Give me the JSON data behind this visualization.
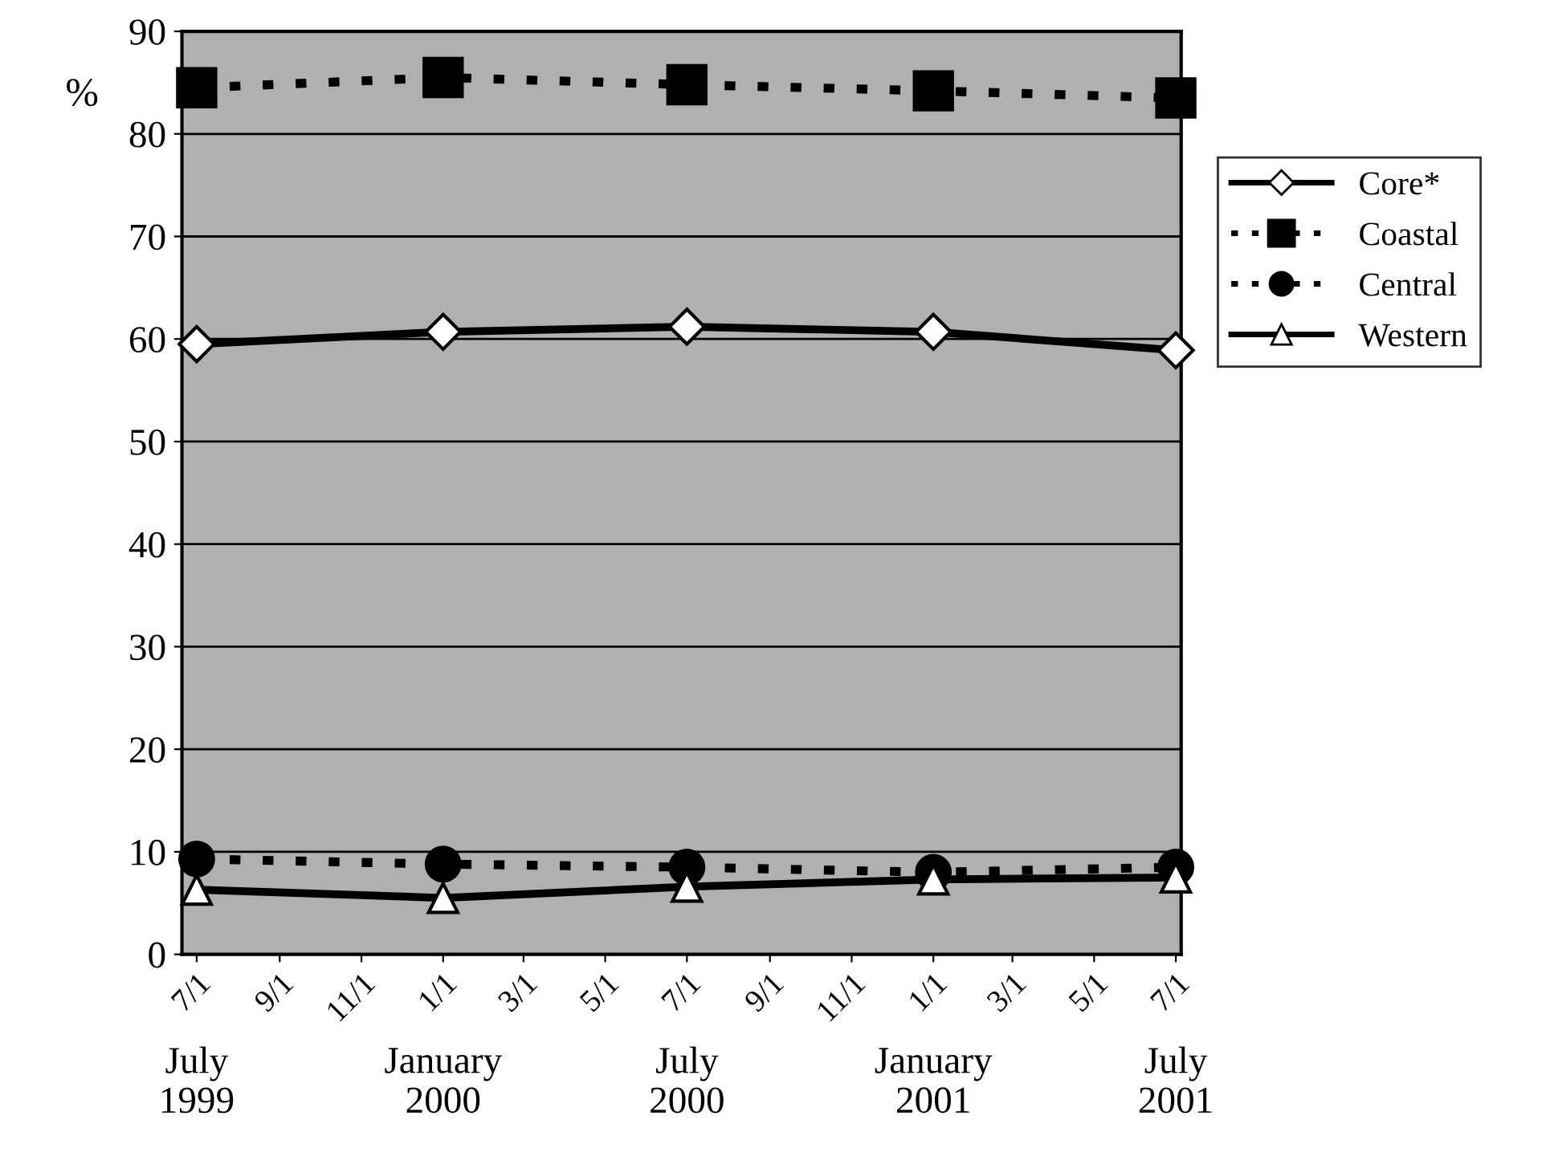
{
  "chart_data": {
    "type": "line",
    "ylabel": "%",
    "x": [
      "1999-07-01",
      "2000-01-01",
      "2000-07-01",
      "2001-01-01",
      "2001-07-01"
    ],
    "series": [
      {
        "name": "Core*",
        "color": "#000000",
        "marker": "diamond",
        "line_style": "solid",
        "values": [
          59.5,
          60.7,
          61.2,
          60.7,
          58.9
        ]
      },
      {
        "name": "Coastal",
        "color": "#000000",
        "marker": "square",
        "line_style": "dotted",
        "values": [
          84.5,
          85.5,
          84.8,
          84.2,
          83.5
        ]
      },
      {
        "name": "Central",
        "color": "#000000",
        "marker": "circle",
        "line_style": "dotted",
        "values": [
          9.3,
          8.8,
          8.5,
          8.0,
          8.5
        ]
      },
      {
        "name": "Western",
        "color": "#000000",
        "marker": "triangle",
        "line_style": "solid",
        "values": [
          6.3,
          5.5,
          6.6,
          7.3,
          7.5
        ]
      }
    ],
    "xlim": [
      "1999-06-20",
      "2001-07-05"
    ],
    "xticks": [
      {
        "value": "1999-07-01",
        "label": "7/1"
      },
      {
        "value": "1999-09-01",
        "label": "9/1"
      },
      {
        "value": "1999-11-01",
        "label": "11/1"
      },
      {
        "value": "2000-01-01",
        "label": "1/1"
      },
      {
        "value": "2000-03-01",
        "label": "3/1"
      },
      {
        "value": "2000-05-01",
        "label": "5/1"
      },
      {
        "value": "2000-07-01",
        "label": "7/1"
      },
      {
        "value": "2000-09-01",
        "label": "9/1"
      },
      {
        "value": "2000-11-01",
        "label": "11/1"
      },
      {
        "value": "2001-01-01",
        "label": "1/1"
      },
      {
        "value": "2001-03-01",
        "label": "3/1"
      },
      {
        "value": "2001-05-01",
        "label": "5/1"
      },
      {
        "value": "2001-07-01",
        "label": "7/1"
      }
    ],
    "ylim": [
      0,
      90
    ],
    "yticks": [
      0,
      10,
      20,
      30,
      40,
      50,
      60,
      70,
      80,
      90
    ],
    "grid": "y",
    "legend": "right",
    "annotations": [
      "July\n1999",
      "January\n2000",
      "July\n2000",
      "January\n2001",
      "July\n2001"
    ]
  }
}
